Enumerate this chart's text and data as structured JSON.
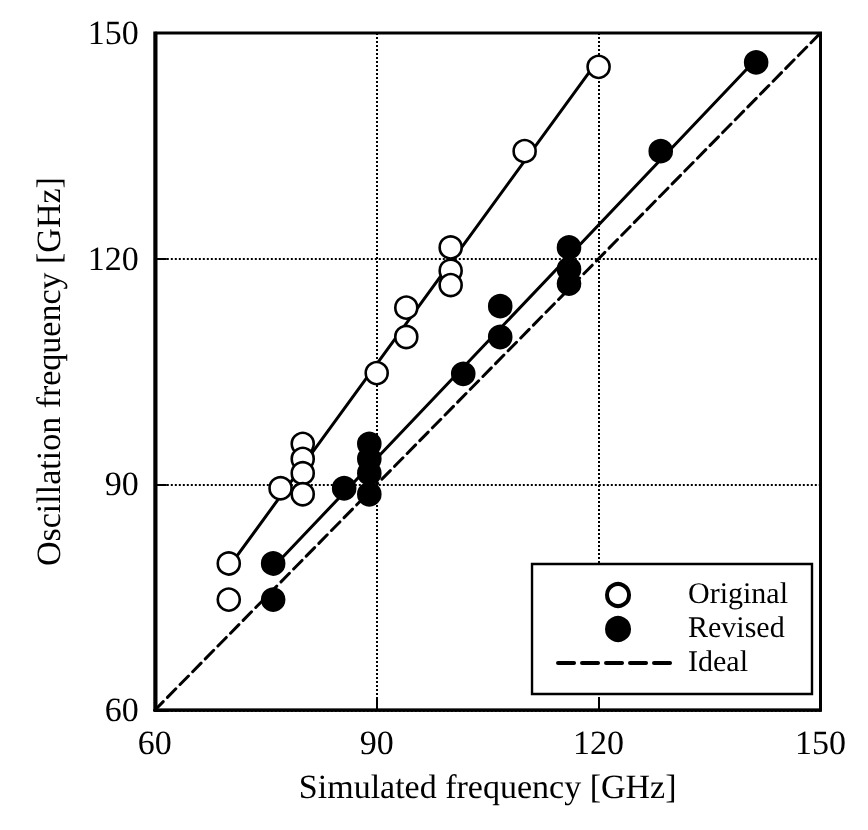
{
  "chart_data": {
    "type": "scatter",
    "xlabel": "Simulated frequency [GHz]",
    "ylabel": "Oscillation frequency [GHz]",
    "xlim": [
      60,
      150
    ],
    "ylim": [
      60,
      150
    ],
    "xticks": [
      60,
      90,
      120,
      150
    ],
    "yticks": [
      60,
      90,
      120,
      150
    ],
    "grid": true,
    "legend": "bottom right",
    "marker": "circle",
    "series": [
      {
        "name": "Original",
        "color": "#ffffff",
        "x": [
          70,
          70,
          77,
          80,
          80,
          80,
          80,
          90,
          94,
          94,
          100,
          100,
          100,
          110,
          120
        ],
        "values": [
          79.5,
          74.7,
          89.5,
          95.4,
          93.4,
          91.5,
          88.7,
          104.8,
          113.5,
          109.6,
          121.5,
          118.4,
          116.5,
          134.3,
          145.5
        ]
      },
      {
        "type": "line",
        "marker": "none",
        "color": "#000000",
        "line_style": "solid",
        "x": [
          70,
          120
        ],
        "values": [
          79,
          146.5
        ]
      },
      {
        "name": "Revised",
        "color": "#000000",
        "x": [
          76,
          76,
          85.6,
          89,
          89,
          89,
          89,
          101.7,
          106.7,
          106.7,
          116,
          116,
          116,
          128.4,
          141.3
        ],
        "values": [
          79.5,
          74.7,
          89.5,
          95.4,
          93.4,
          91.5,
          88.7,
          104.7,
          113.7,
          109.6,
          121.5,
          118.6,
          116.7,
          134.3,
          146.1
        ]
      },
      {
        "type": "line",
        "marker": "none",
        "color": "#000000",
        "line_style": "solid",
        "x": [
          76,
          141.3
        ],
        "values": [
          79,
          146.5
        ]
      },
      {
        "name": "Ideal",
        "type": "line",
        "marker": "none",
        "color": "#000000",
        "line_style": "dashed",
        "x": [
          60,
          150
        ],
        "values": [
          60,
          150
        ]
      }
    ]
  }
}
